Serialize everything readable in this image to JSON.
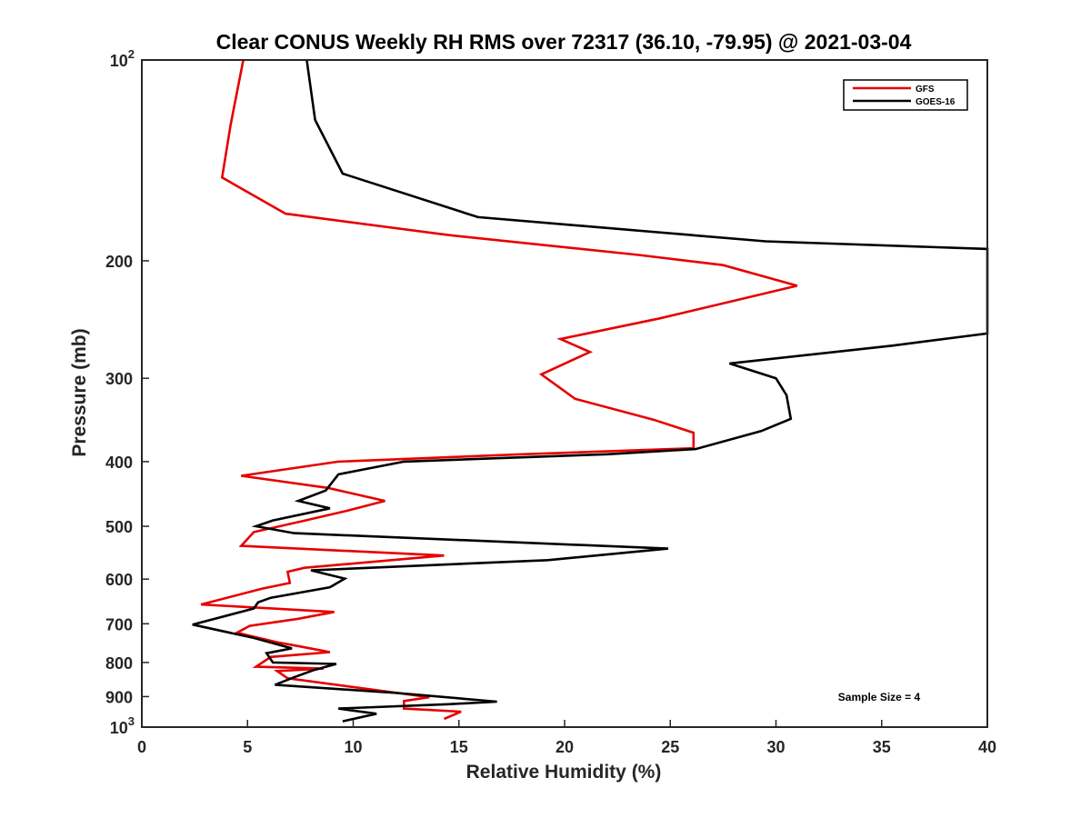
{
  "chart_data": {
    "type": "line",
    "title": "Clear CONUS Weekly RH RMS over 72317 (36.10, -79.95) @ 2021-03-04",
    "xlabel": "Relative Humidity (%)",
    "ylabel": "Pressure (mb)",
    "xlim": [
      0,
      40
    ],
    "ylim": [
      100,
      1000
    ],
    "y_scale": "log",
    "y_reversed": true,
    "xticks": [
      0,
      5,
      10,
      15,
      20,
      25,
      30,
      35,
      40
    ],
    "xtick_labels": [
      "0",
      "5",
      "10",
      "15",
      "20",
      "25",
      "30",
      "35",
      "40"
    ],
    "yticks": [
      {
        "value": 100,
        "base": "10",
        "exp": "2"
      },
      {
        "value": 200,
        "base": "200",
        "exp": ""
      },
      {
        "value": 300,
        "base": "300",
        "exp": ""
      },
      {
        "value": 400,
        "base": "400",
        "exp": ""
      },
      {
        "value": 500,
        "base": "500",
        "exp": ""
      },
      {
        "value": 600,
        "base": "600",
        "exp": ""
      },
      {
        "value": 700,
        "base": "700",
        "exp": ""
      },
      {
        "value": 800,
        "base": "800",
        "exp": ""
      },
      {
        "value": 900,
        "base": "900",
        "exp": ""
      },
      {
        "value": 1000,
        "base": "10",
        "exp": "3"
      }
    ],
    "grid": false,
    "legend_position": "top-right",
    "annotation": "Sample Size = 4",
    "series": [
      {
        "name": "GFS",
        "color": "#e60000",
        "points": [
          [
            4.8,
            100
          ],
          [
            4.2,
            125
          ],
          [
            3.8,
            150
          ],
          [
            6.8,
            170
          ],
          [
            14.5,
            183
          ],
          [
            23.5,
            196
          ],
          [
            27.5,
            203
          ],
          [
            31.0,
            218
          ],
          [
            24.5,
            244
          ],
          [
            19.8,
            262
          ],
          [
            21.2,
            274
          ],
          [
            18.9,
            296
          ],
          [
            20.5,
            322
          ],
          [
            24.2,
            346
          ],
          [
            26.1,
            362
          ],
          [
            26.1,
            382
          ],
          [
            18.0,
            390
          ],
          [
            9.3,
            400
          ],
          [
            4.7,
            420
          ],
          [
            8.8,
            438
          ],
          [
            11.5,
            458
          ],
          [
            9.7,
            474
          ],
          [
            7.5,
            492
          ],
          [
            5.3,
            510
          ],
          [
            4.7,
            535
          ],
          [
            14.3,
            553
          ],
          [
            7.7,
            577
          ],
          [
            6.9,
            585
          ],
          [
            7.0,
            608
          ],
          [
            5.7,
            620
          ],
          [
            2.8,
            655
          ],
          [
            9.1,
            672
          ],
          [
            7.4,
            688
          ],
          [
            5.1,
            705
          ],
          [
            4.5,
            722
          ],
          [
            6.4,
            746
          ],
          [
            7.5,
            757
          ],
          [
            8.9,
            772
          ],
          [
            6.1,
            785
          ],
          [
            5.4,
            812
          ],
          [
            8.6,
            817
          ],
          [
            6.4,
            824
          ],
          [
            6.9,
            845
          ],
          [
            13.6,
            902
          ],
          [
            12.4,
            914
          ],
          [
            12.4,
            938
          ],
          [
            15.1,
            948
          ],
          [
            14.3,
            972
          ]
        ]
      },
      {
        "name": "GOES-16",
        "color": "#000000",
        "points": [
          [
            7.8,
            100
          ],
          [
            8.2,
            123
          ],
          [
            9.5,
            148
          ],
          [
            15.9,
            172
          ],
          [
            29.5,
            187
          ],
          [
            40.0,
            192
          ],
          [
            40.0,
            257
          ],
          [
            35.5,
            268
          ],
          [
            27.8,
            285
          ],
          [
            30.0,
            300
          ],
          [
            30.5,
            318
          ],
          [
            30.7,
            345
          ],
          [
            29.3,
            360
          ],
          [
            26.2,
            383
          ],
          [
            22.0,
            390
          ],
          [
            12.4,
            400
          ],
          [
            9.3,
            418
          ],
          [
            8.7,
            442
          ],
          [
            7.4,
            458
          ],
          [
            8.9,
            470
          ],
          [
            6.2,
            490
          ],
          [
            5.4,
            500
          ],
          [
            7.2,
            512
          ],
          [
            24.9,
            540
          ],
          [
            19.2,
            562
          ],
          [
            8.0,
            582
          ],
          [
            9.6,
            599
          ],
          [
            8.9,
            617
          ],
          [
            6.1,
            640
          ],
          [
            5.5,
            650
          ],
          [
            5.3,
            664
          ],
          [
            2.4,
            702
          ],
          [
            5.3,
            735
          ],
          [
            7.1,
            762
          ],
          [
            5.9,
            775
          ],
          [
            6.2,
            800
          ],
          [
            9.2,
            804
          ],
          [
            8.1,
            822
          ],
          [
            7.2,
            842
          ],
          [
            6.3,
            864
          ],
          [
            12.1,
            889
          ],
          [
            16.8,
            916
          ],
          [
            14.5,
            924
          ],
          [
            9.3,
            938
          ],
          [
            11.1,
            955
          ],
          [
            9.5,
            980
          ]
        ]
      }
    ]
  }
}
